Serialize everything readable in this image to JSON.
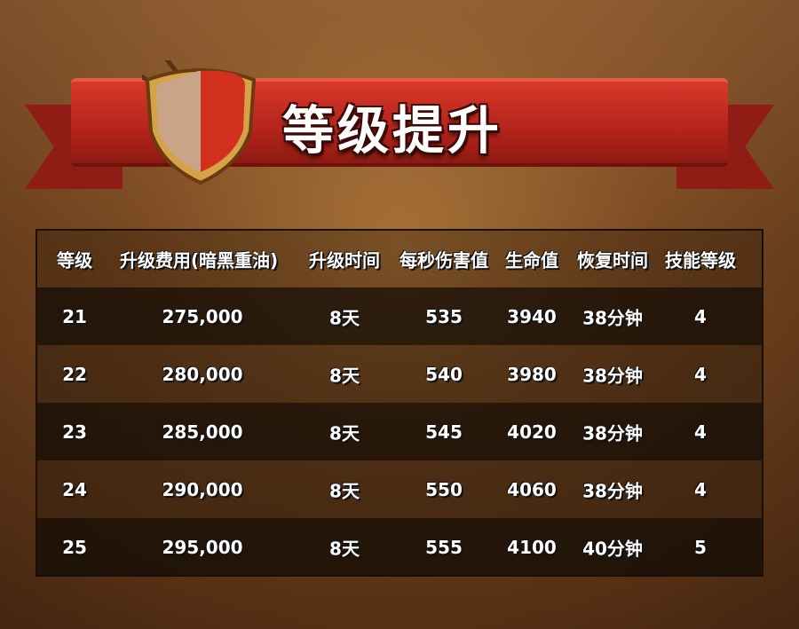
{
  "title": "等级提升",
  "table": {
    "headers": [
      "等级",
      "升级费用(暗黑重油)",
      "升级时间",
      "每秒伤害值",
      "生命值",
      "恢复时间",
      "技能等级"
    ],
    "rows": [
      [
        "21",
        "275,000",
        "8天",
        "535",
        "3940",
        "38分钟",
        "4"
      ],
      [
        "22",
        "280,000",
        "8天",
        "540",
        "3980",
        "38分钟",
        "4"
      ],
      [
        "23",
        "285,000",
        "8天",
        "545",
        "4020",
        "38分钟",
        "4"
      ],
      [
        "24",
        "290,000",
        "8天",
        "550",
        "4060",
        "38分钟",
        "4"
      ],
      [
        "25",
        "295,000",
        "8天",
        "555",
        "4100",
        "40分钟",
        "5"
      ]
    ]
  },
  "colors": {
    "header_text": "#ffc21a",
    "ribbon": "#c62c20",
    "row_text": "#ffffff"
  }
}
